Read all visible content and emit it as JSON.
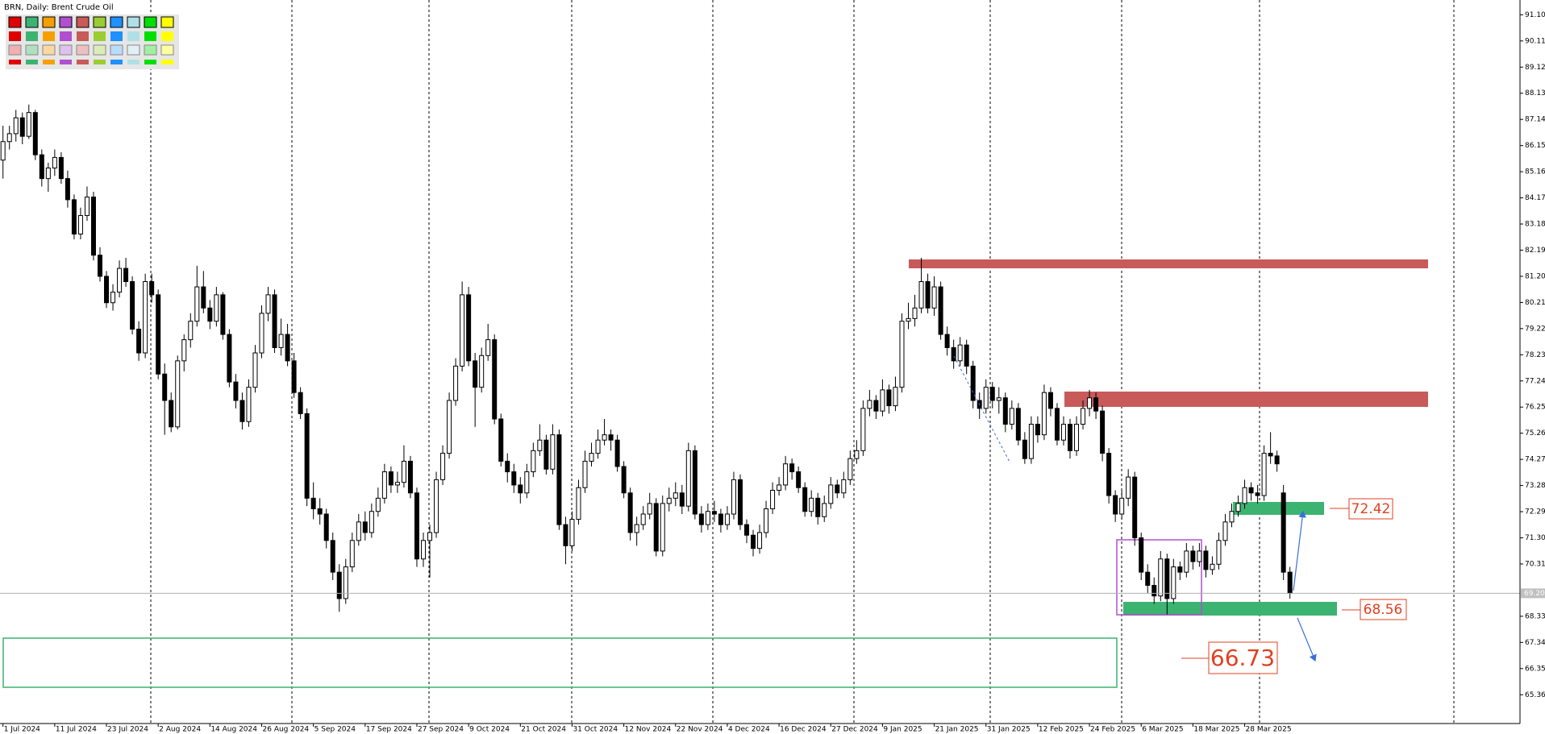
{
  "chart_data": {
    "type": "candlestick",
    "title": "BRN, Daily:  Brent Crude Oil",
    "categories": [
      "1 Jul 2024",
      null,
      null,
      null,
      null,
      null,
      null,
      null,
      "11 Jul 2024",
      null,
      null,
      null,
      null,
      null,
      null,
      null,
      "23 Jul 2024",
      null,
      null,
      null,
      null,
      null,
      null,
      null,
      "2 Aug 2024",
      null,
      null,
      null,
      null,
      null,
      null,
      null,
      "14 Aug 2024",
      null,
      null,
      null,
      null,
      null,
      null,
      null,
      "26 Aug 2024",
      null,
      null,
      null,
      null,
      null,
      null,
      null,
      "5 Sep 2024",
      null,
      null,
      null,
      null,
      null,
      null,
      null,
      "17 Sep 2024",
      null,
      null,
      null,
      null,
      null,
      null,
      null,
      "27 Sep 2024",
      null,
      null,
      null,
      null,
      null,
      null,
      null,
      "9 Oct 2024",
      null,
      null,
      null,
      null,
      null,
      null,
      null,
      "21 Oct 2024",
      null,
      null,
      null,
      null,
      null,
      null,
      null,
      "31 Oct 2024",
      null,
      null,
      null,
      null,
      null,
      null,
      null,
      "12 Nov 2024",
      null,
      null,
      null,
      null,
      null,
      null,
      null,
      "22 Nov 2024",
      null,
      null,
      null,
      null,
      null,
      null,
      null,
      "4 Dec 2024",
      null,
      null,
      null,
      null,
      null,
      null,
      null,
      "16 Dec 2024",
      null,
      null,
      null,
      null,
      null,
      null,
      null,
      "27 Dec 2024",
      null,
      null,
      null,
      null,
      null,
      null,
      null,
      "9 Jan 2025",
      null,
      null,
      null,
      null,
      null,
      null,
      null,
      "21 Jan 2025",
      null,
      null,
      null,
      null,
      null,
      null,
      null,
      "31 Jan 2025",
      null,
      null,
      null,
      null,
      null,
      null,
      null,
      "12 Feb 2025",
      null,
      null,
      null,
      null,
      null,
      null,
      null,
      "24 Feb 2025",
      null,
      null,
      null,
      null,
      null,
      null,
      null,
      "6 Mar 2025",
      null,
      null,
      null,
      null,
      null,
      null,
      null,
      "18 Mar 2025",
      null,
      null,
      null,
      null,
      null,
      null,
      null,
      "28 Mar 2025",
      null,
      null,
      null,
      null,
      null,
      null,
      null
    ],
    "ohlc": [
      [
        85.6,
        86.9,
        84.9,
        86.3
      ],
      [
        86.3,
        86.9,
        86.0,
        86.6
      ],
      [
        86.6,
        87.5,
        86.3,
        87.2
      ],
      [
        87.2,
        87.4,
        86.2,
        86.5
      ],
      [
        86.5,
        87.7,
        86.4,
        87.4
      ],
      [
        87.4,
        87.5,
        85.6,
        85.8
      ],
      [
        85.8,
        86.0,
        84.6,
        84.9
      ],
      [
        84.9,
        85.5,
        84.4,
        85.3
      ],
      [
        85.3,
        86.0,
        85.0,
        85.7
      ],
      [
        85.7,
        85.9,
        84.7,
        84.9
      ],
      [
        84.9,
        85.2,
        83.8,
        84.1
      ],
      [
        84.1,
        84.3,
        82.6,
        82.8
      ],
      [
        82.8,
        83.8,
        82.6,
        83.5
      ],
      [
        83.5,
        84.6,
        83.3,
        84.2
      ],
      [
        84.2,
        84.4,
        81.8,
        82.0
      ],
      [
        82.0,
        82.3,
        81.0,
        81.2
      ],
      [
        81.2,
        81.4,
        80.0,
        80.2
      ],
      [
        80.2,
        80.9,
        79.9,
        80.6
      ],
      [
        80.6,
        81.8,
        80.4,
        81.5
      ],
      [
        81.5,
        81.9,
        80.8,
        81.0
      ],
      [
        81.0,
        81.2,
        79.0,
        79.2
      ],
      [
        79.2,
        79.5,
        78.0,
        78.3
      ],
      [
        78.3,
        81.3,
        78.1,
        81.0
      ],
      [
        81.0,
        81.3,
        80.2,
        80.5
      ],
      [
        80.5,
        80.7,
        77.3,
        77.5
      ],
      [
        77.5,
        77.9,
        75.2,
        76.5
      ],
      [
        76.5,
        76.8,
        75.3,
        75.5
      ],
      [
        75.5,
        78.2,
        75.4,
        78.0
      ],
      [
        78.0,
        79.0,
        77.6,
        78.8
      ],
      [
        78.8,
        79.8,
        78.5,
        79.5
      ],
      [
        79.5,
        81.6,
        79.3,
        80.8
      ],
      [
        80.8,
        81.4,
        79.8,
        80.0
      ],
      [
        80.0,
        80.3,
        79.2,
        79.5
      ],
      [
        79.5,
        80.8,
        79.3,
        80.5
      ],
      [
        80.5,
        80.6,
        78.8,
        79.0
      ],
      [
        79.0,
        79.2,
        77.0,
        77.2
      ],
      [
        77.2,
        77.5,
        76.2,
        76.5
      ],
      [
        76.5,
        76.8,
        75.4,
        75.7
      ],
      [
        75.7,
        77.3,
        75.5,
        77.0
      ],
      [
        77.0,
        78.6,
        76.8,
        78.3
      ],
      [
        78.3,
        80.1,
        78.1,
        79.8
      ],
      [
        79.8,
        80.8,
        79.5,
        80.5
      ],
      [
        80.5,
        80.7,
        78.3,
        78.5
      ],
      [
        78.5,
        79.6,
        78.2,
        79.0
      ],
      [
        79.0,
        79.4,
        77.8,
        78.0
      ],
      [
        78.0,
        78.3,
        76.6,
        76.8
      ],
      [
        76.8,
        77.0,
        75.8,
        76.0
      ],
      [
        76.0,
        76.2,
        72.5,
        72.8
      ],
      [
        72.8,
        73.4,
        72.0,
        72.4
      ],
      [
        72.4,
        72.8,
        71.8,
        72.2
      ],
      [
        72.2,
        72.4,
        70.9,
        71.2
      ],
      [
        71.2,
        71.5,
        69.7,
        70.0
      ],
      [
        70.0,
        70.3,
        68.5,
        69.0
      ],
      [
        69.0,
        70.5,
        68.8,
        70.2
      ],
      [
        70.2,
        71.5,
        70.0,
        71.2
      ],
      [
        71.2,
        72.2,
        71.0,
        71.9
      ],
      [
        71.9,
        72.3,
        71.2,
        71.5
      ],
      [
        71.5,
        72.6,
        71.3,
        72.3
      ],
      [
        72.3,
        73.2,
        72.1,
        72.8
      ],
      [
        72.8,
        74.1,
        72.6,
        73.8
      ],
      [
        73.8,
        74.0,
        73.0,
        73.3
      ],
      [
        73.3,
        73.8,
        73.0,
        73.4
      ],
      [
        73.4,
        74.8,
        73.2,
        74.2
      ],
      [
        74.2,
        74.4,
        72.8,
        73.0
      ],
      [
        73.0,
        73.2,
        70.2,
        70.5
      ],
      [
        70.5,
        71.5,
        70.2,
        71.2
      ],
      [
        71.2,
        71.8,
        69.8,
        71.5
      ],
      [
        71.5,
        73.8,
        71.3,
        73.5
      ],
      [
        73.5,
        74.8,
        73.3,
        74.5
      ],
      [
        74.5,
        76.8,
        74.3,
        76.5
      ],
      [
        76.5,
        78.1,
        76.3,
        77.8
      ],
      [
        77.8,
        81.0,
        77.6,
        80.5
      ],
      [
        80.5,
        80.8,
        77.8,
        78.0
      ],
      [
        78.0,
        78.3,
        75.5,
        77.0
      ],
      [
        77.0,
        78.5,
        76.8,
        78.2
      ],
      [
        78.2,
        79.4,
        78.0,
        78.8
      ],
      [
        78.8,
        79.0,
        75.6,
        75.8
      ],
      [
        75.8,
        76.0,
        74.0,
        74.2
      ],
      [
        74.2,
        74.5,
        73.4,
        73.8
      ],
      [
        73.8,
        74.1,
        73.0,
        73.3
      ],
      [
        73.3,
        73.6,
        72.6,
        73.0
      ],
      [
        73.0,
        74.1,
        72.8,
        73.8
      ],
      [
        73.8,
        74.9,
        73.6,
        74.6
      ],
      [
        74.6,
        75.6,
        74.4,
        75.0
      ],
      [
        75.0,
        75.2,
        73.7,
        73.9
      ],
      [
        73.9,
        75.6,
        73.7,
        75.2
      ],
      [
        75.2,
        75.4,
        71.6,
        71.8
      ],
      [
        71.8,
        72.1,
        70.3,
        71.0
      ],
      [
        71.0,
        72.3,
        70.8,
        72.0
      ],
      [
        72.0,
        73.5,
        71.8,
        73.2
      ],
      [
        73.2,
        74.6,
        73.0,
        74.2
      ],
      [
        74.2,
        74.9,
        74.0,
        74.5
      ],
      [
        74.5,
        75.4,
        74.3,
        75.0
      ],
      [
        75.0,
        75.8,
        74.8,
        75.2
      ],
      [
        75.2,
        75.4,
        74.6,
        75.0
      ],
      [
        75.0,
        75.2,
        73.8,
        74.0
      ],
      [
        74.0,
        74.2,
        72.8,
        73.0
      ],
      [
        73.0,
        73.2,
        71.2,
        71.5
      ],
      [
        71.5,
        72.1,
        71.0,
        71.8
      ],
      [
        71.8,
        72.5,
        71.6,
        72.2
      ],
      [
        72.2,
        73.0,
        72.0,
        72.6
      ],
      [
        72.6,
        72.8,
        70.6,
        70.8
      ],
      [
        70.8,
        72.9,
        70.6,
        72.6
      ],
      [
        72.6,
        73.2,
        72.3,
        72.8
      ],
      [
        72.8,
        73.4,
        72.5,
        73.0
      ],
      [
        73.0,
        73.3,
        72.2,
        72.5
      ],
      [
        72.5,
        74.9,
        72.3,
        74.6
      ],
      [
        74.6,
        74.8,
        72.0,
        72.2
      ],
      [
        72.2,
        72.5,
        71.5,
        71.8
      ],
      [
        71.8,
        72.6,
        71.6,
        72.3
      ],
      [
        72.3,
        72.7,
        71.9,
        72.2
      ],
      [
        72.2,
        72.4,
        71.5,
        71.8
      ],
      [
        71.8,
        72.5,
        71.6,
        72.2
      ],
      [
        72.2,
        73.8,
        72.0,
        73.5
      ],
      [
        73.5,
        73.7,
        71.6,
        71.8
      ],
      [
        71.8,
        72.0,
        71.1,
        71.4
      ],
      [
        71.4,
        71.6,
        70.6,
        70.9
      ],
      [
        70.9,
        71.8,
        70.7,
        71.5
      ],
      [
        71.5,
        72.7,
        71.3,
        72.4
      ],
      [
        72.4,
        73.4,
        72.2,
        73.1
      ],
      [
        73.1,
        73.6,
        72.9,
        73.3
      ],
      [
        73.3,
        74.4,
        73.1,
        74.1
      ],
      [
        74.1,
        74.3,
        73.5,
        73.8
      ],
      [
        73.8,
        74.0,
        73.0,
        73.2
      ],
      [
        73.2,
        73.4,
        72.1,
        72.3
      ],
      [
        72.3,
        73.1,
        72.1,
        72.8
      ],
      [
        72.8,
        73.0,
        71.8,
        72.1
      ],
      [
        72.1,
        72.9,
        71.9,
        72.6
      ],
      [
        72.6,
        73.6,
        72.4,
        73.3
      ],
      [
        73.3,
        73.5,
        72.8,
        73.0
      ],
      [
        73.0,
        73.8,
        72.8,
        73.5
      ],
      [
        73.5,
        74.6,
        73.3,
        74.3
      ],
      [
        74.3,
        75.0,
        74.1,
        74.6
      ],
      [
        74.6,
        76.5,
        74.4,
        76.2
      ],
      [
        76.2,
        76.9,
        75.9,
        76.5
      ],
      [
        76.5,
        76.7,
        75.8,
        76.1
      ],
      [
        76.1,
        77.3,
        75.9,
        76.9
      ],
      [
        76.9,
        77.1,
        76.0,
        76.3
      ],
      [
        76.3,
        77.4,
        76.1,
        77.0
      ],
      [
        77.0,
        79.8,
        76.8,
        79.5
      ],
      [
        79.5,
        80.2,
        79.2,
        79.6
      ],
      [
        79.6,
        80.5,
        79.3,
        80.0
      ],
      [
        80.0,
        81.9,
        79.8,
        81.0
      ],
      [
        81.0,
        81.3,
        79.8,
        80.0
      ],
      [
        80.0,
        81.2,
        79.7,
        80.8
      ],
      [
        80.8,
        81.0,
        78.8,
        79.0
      ],
      [
        79.0,
        79.3,
        78.2,
        78.5
      ],
      [
        78.5,
        78.8,
        77.7,
        78.0
      ],
      [
        78.0,
        78.9,
        77.8,
        78.6
      ],
      [
        78.6,
        78.8,
        77.5,
        77.8
      ],
      [
        77.8,
        78.0,
        76.2,
        76.5
      ],
      [
        76.5,
        76.8,
        75.8,
        76.2
      ],
      [
        76.2,
        77.3,
        76.0,
        77.0
      ],
      [
        77.0,
        77.2,
        76.2,
        76.5
      ],
      [
        76.5,
        77.0,
        76.0,
        76.6
      ],
      [
        76.6,
        76.8,
        75.3,
        75.6
      ],
      [
        75.6,
        76.5,
        75.4,
        76.2
      ],
      [
        76.2,
        76.4,
        74.8,
        75.0
      ],
      [
        75.0,
        75.3,
        74.1,
        74.3
      ],
      [
        74.3,
        75.9,
        74.1,
        75.6
      ],
      [
        75.6,
        75.9,
        74.9,
        75.2
      ],
      [
        75.2,
        77.1,
        75.0,
        76.8
      ],
      [
        76.8,
        77.0,
        75.9,
        76.2
      ],
      [
        76.2,
        76.4,
        74.8,
        75.0
      ],
      [
        75.0,
        75.9,
        74.8,
        75.6
      ],
      [
        75.6,
        75.8,
        74.3,
        74.6
      ],
      [
        74.6,
        75.9,
        74.4,
        75.6
      ],
      [
        75.6,
        76.5,
        75.4,
        76.2
      ],
      [
        76.2,
        76.9,
        75.9,
        76.6
      ],
      [
        76.6,
        76.8,
        75.8,
        76.1
      ],
      [
        76.1,
        76.3,
        74.2,
        74.5
      ],
      [
        74.5,
        74.7,
        72.6,
        72.9
      ],
      [
        72.9,
        73.1,
        71.9,
        72.2
      ],
      [
        72.2,
        73.1,
        72.0,
        72.8
      ],
      [
        72.8,
        73.9,
        72.5,
        73.6
      ],
      [
        73.6,
        73.8,
        71.0,
        71.3
      ],
      [
        71.3,
        71.5,
        69.7,
        70.0
      ],
      [
        70.0,
        70.3,
        69.2,
        69.5
      ],
      [
        69.5,
        69.8,
        68.8,
        69.1
      ],
      [
        69.1,
        70.8,
        68.9,
        70.5
      ],
      [
        70.5,
        70.7,
        68.4,
        69.0
      ],
      [
        69.0,
        70.5,
        68.8,
        70.2
      ],
      [
        70.2,
        70.4,
        69.7,
        70.0
      ],
      [
        70.0,
        71.1,
        69.8,
        70.8
      ],
      [
        70.8,
        71.0,
        70.1,
        70.4
      ],
      [
        70.4,
        71.1,
        70.2,
        70.8
      ],
      [
        70.8,
        71.0,
        69.8,
        70.1
      ],
      [
        70.1,
        70.6,
        69.9,
        70.3
      ],
      [
        70.3,
        71.5,
        70.1,
        71.2
      ],
      [
        71.2,
        72.2,
        71.0,
        71.9
      ],
      [
        71.9,
        72.6,
        71.7,
        72.3
      ],
      [
        72.3,
        72.9,
        72.1,
        72.6
      ],
      [
        72.6,
        73.5,
        72.4,
        73.2
      ],
      [
        73.2,
        73.4,
        72.7,
        73.0
      ],
      [
        73.0,
        73.3,
        72.6,
        72.9
      ],
      [
        72.9,
        74.8,
        72.7,
        74.5
      ],
      [
        74.5,
        75.3,
        74.1,
        74.4
      ],
      [
        74.4,
        74.6,
        73.8,
        74.1
      ],
      [
        73.0,
        73.3,
        69.7,
        70.0
      ],
      [
        70.0,
        70.2,
        69.0,
        69.2
      ]
    ],
    "ylim": [
      64.27,
      91.66
    ],
    "yticks": [
      {
        "value": 91.1,
        "label": "91.10"
      },
      90.11,
      89.12,
      88.13,
      87.14,
      86.15,
      85.16,
      84.17,
      83.18,
      82.19,
      {
        "value": 81.2,
        "label": "81.20"
      },
      80.21,
      79.22,
      78.23,
      77.24,
      76.25,
      75.26,
      74.27,
      73.28,
      72.29,
      {
        "value": 71.3,
        "label": "71.30"
      },
      70.31,
      68.33,
      67.34,
      66.35,
      65.36
    ],
    "last_price": {
      "value": 69.2,
      "label": "69.20"
    },
    "up_color": "#ffffff",
    "down_color": "#000000",
    "annotations": [
      "72.42",
      "68.56",
      "66.73"
    ]
  }
}
